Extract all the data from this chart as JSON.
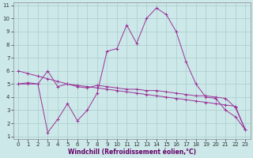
{
  "xlabel": "Windchill (Refroidissement éolien,°C)",
  "bg_color": "#cce8e8",
  "grid_color": "#aacccc",
  "line_color": "#993399",
  "xlim": [
    -0.5,
    23.5
  ],
  "ylim": [
    0.8,
    11.2
  ],
  "xticks": [
    0,
    1,
    2,
    3,
    4,
    5,
    6,
    7,
    8,
    9,
    10,
    11,
    12,
    13,
    14,
    15,
    16,
    17,
    18,
    19,
    20,
    21,
    22,
    23
  ],
  "yticks": [
    1,
    2,
    3,
    4,
    5,
    6,
    7,
    8,
    9,
    10,
    11
  ],
  "line1_x": [
    0,
    1,
    2,
    3,
    4,
    5,
    6,
    7,
    8,
    9,
    10,
    11,
    12,
    13,
    14,
    15,
    16,
    17,
    18,
    19,
    20,
    21,
    22,
    23
  ],
  "line1_y": [
    6.0,
    5.8,
    5.6,
    5.4,
    5.2,
    5.0,
    4.9,
    4.8,
    4.7,
    4.6,
    4.5,
    4.4,
    4.3,
    4.2,
    4.1,
    4.0,
    3.9,
    3.8,
    3.7,
    3.6,
    3.5,
    3.4,
    3.3,
    1.5
  ],
  "line2_x": [
    0,
    1,
    2,
    3,
    4,
    5,
    6,
    7,
    8,
    9,
    10,
    11,
    12,
    13,
    14,
    15,
    16,
    17,
    18,
    19,
    20,
    21,
    22,
    23
  ],
  "line2_y": [
    5.0,
    5.0,
    5.0,
    6.0,
    4.8,
    5.0,
    4.8,
    4.7,
    4.9,
    4.8,
    4.7,
    4.6,
    4.6,
    4.5,
    4.5,
    4.4,
    4.3,
    4.2,
    4.1,
    4.1,
    4.0,
    3.9,
    3.2,
    1.5
  ],
  "line3_x": [
    0,
    1,
    2,
    3,
    4,
    5,
    6,
    7,
    8,
    9,
    10,
    11,
    12,
    13,
    14,
    15,
    16,
    17,
    18,
    19,
    20,
    21,
    22,
    23
  ],
  "line3_y": [
    5.0,
    5.1,
    5.0,
    1.3,
    2.3,
    3.5,
    2.2,
    3.0,
    4.3,
    7.5,
    7.7,
    9.5,
    8.1,
    10.0,
    10.8,
    10.3,
    9.0,
    6.7,
    5.0,
    4.0,
    3.9,
    3.0,
    2.5,
    1.5
  ],
  "tick_fontsize": 5,
  "xlabel_fontsize": 5.5
}
